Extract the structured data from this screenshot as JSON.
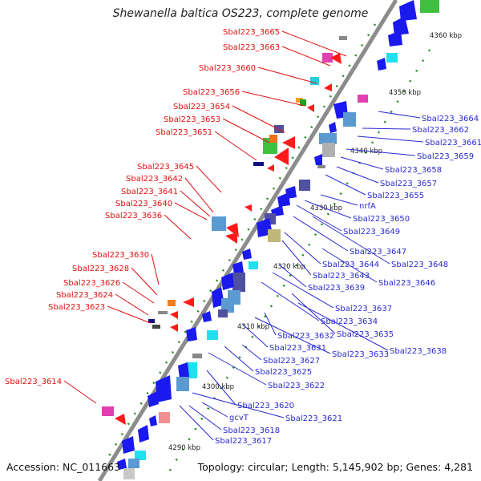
{
  "title": "Shewanella baltica OS223, complete genome",
  "footer": {
    "accession": "Accession: NC_011663",
    "info": "Topology: circular; Length: 5,145,902 bp; Genes: 4,281"
  },
  "colors": {
    "reverse_label": "#e01010",
    "forward_label": "#2a2ad0",
    "backbone": "#8c8c8c",
    "tick": "#1e8c1e"
  },
  "kbp_ticks": [
    "4290 kbp",
    "4300 kbp",
    "4310 kbp",
    "4320 kbp",
    "4330 kbp",
    "4340 kbp",
    "4350 kbp",
    "4360 kbp"
  ],
  "left_labels": [
    "Sbal223_3665",
    "Sbal223_3663",
    "Sbal223_3660",
    "Sbal223_3656",
    "Sbal223_3654",
    "Sbal223_3653",
    "Sbal223_3651",
    "Sbal223_3645",
    "Sbal223_3642",
    "Sbal223_3641",
    "Sbal223_3640",
    "Sbal223_3636",
    "Sbal223_3630",
    "Sbal223_3628",
    "Sbal223_3626",
    "Sbal223_3624",
    "Sbal223_3623",
    "Sbal223_3614"
  ],
  "right_labels": [
    "Sbal223_3664",
    "Sbal223_3662",
    "Sbal223_3661",
    "Sbal223_3659",
    "Sbal223_3658",
    "Sbal223_3657",
    "Sbal223_3655",
    "nrfA",
    "Sbal223_3650",
    "Sbal223_3649",
    "Sbal223_3647",
    "Sbal223_3648",
    "Sbal223_3644",
    "Sbal223_3643",
    "Sbal223_3646",
    "Sbal223_3639",
    "Sbal223_3637",
    "Sbal223_3634",
    "Sbal223_3635",
    "Sbal223_3632",
    "Sbal223_3638",
    "Sbal223_3631",
    "Sbal223_3633",
    "Sbal223_3627",
    "Sbal223_3625",
    "Sbal223_3622",
    "Sbal223_3620",
    "Sbal223_3621",
    "gcvT",
    "Sbal223_3618",
    "Sbal223_3617"
  ]
}
